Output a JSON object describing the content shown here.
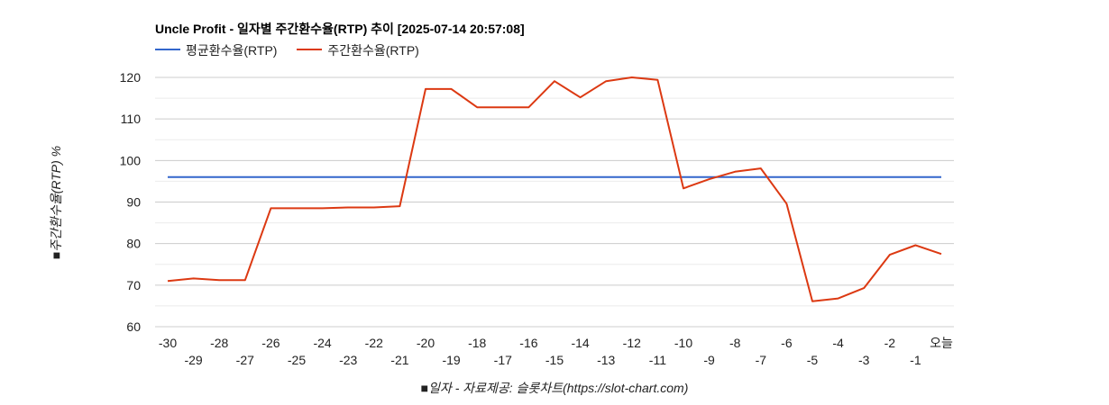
{
  "chart_data": {
    "type": "line",
    "title": "Uncle Profit - 일자별 주간환수율(RTP) 추이 [2025-07-14 20:57:08]",
    "ylabel": "■주간환수율(RTP) %",
    "xlabel": "■일자 - 자료제공: 슬롯차트(https://slot-chart.com)",
    "ylim": [
      60,
      120
    ],
    "yticks": [
      60,
      70,
      80,
      90,
      100,
      110,
      120
    ],
    "grid": true,
    "legend_position": "top-left",
    "categories": [
      "-30",
      "-29",
      "-28",
      "-27",
      "-26",
      "-25",
      "-24",
      "-23",
      "-22",
      "-21",
      "-20",
      "-19",
      "-18",
      "-17",
      "-16",
      "-15",
      "-14",
      "-13",
      "-12",
      "-11",
      "-10",
      "-9",
      "-8",
      "-7",
      "-6",
      "-5",
      "-4",
      "-3",
      "-2",
      "-1",
      "오늘"
    ],
    "series": [
      {
        "name": "평균환수율(RTP)",
        "color": "#3366cc",
        "values": [
          96,
          96,
          96,
          96,
          96,
          96,
          96,
          96,
          96,
          96,
          96,
          96,
          96,
          96,
          96,
          96,
          96,
          96,
          96,
          96,
          96,
          96,
          96,
          96,
          96,
          96,
          96,
          96,
          96,
          96,
          96
        ]
      },
      {
        "name": "주간환수율(RTP)",
        "color": "#dc3912",
        "values": [
          71,
          71.6,
          71.2,
          71.2,
          88.5,
          88.5,
          88.5,
          88.7,
          88.7,
          89,
          117.2,
          117.2,
          112.8,
          112.8,
          112.8,
          119.1,
          115.2,
          119.1,
          120,
          119.4,
          93.3,
          95.5,
          97.3,
          98.1,
          89.6,
          66.1,
          66.8,
          69.3,
          77.3,
          79.6,
          77.5
        ]
      }
    ]
  }
}
